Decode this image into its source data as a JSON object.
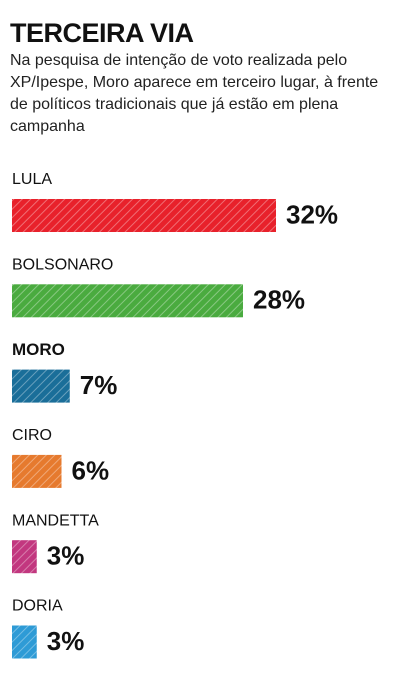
{
  "chart_data": {
    "type": "hbar",
    "title": "TERCEIRA VIA",
    "subtitle": "Na pesquisa de intenção de voto realizada pelo XP/Ipespe, Moro aparece em terceiro lugar, à frente de políticos tradicionais que já estão em plena campanha",
    "categories": [
      "LULA",
      "BOLSONARO",
      "MORO",
      "CIRO",
      "MANDETTA",
      "DORIA"
    ],
    "values": [
      32,
      28,
      7,
      6,
      3,
      3
    ],
    "value_labels": [
      "32%",
      "28%",
      "7%",
      "6%",
      "3%",
      "3%"
    ],
    "colors": [
      "#e8212b",
      "#4aab3f",
      "#1a6e99",
      "#e67a2e",
      "#c2377f",
      "#2e9bd6"
    ],
    "highlight": [
      false,
      false,
      true,
      false,
      false,
      false
    ]
  }
}
